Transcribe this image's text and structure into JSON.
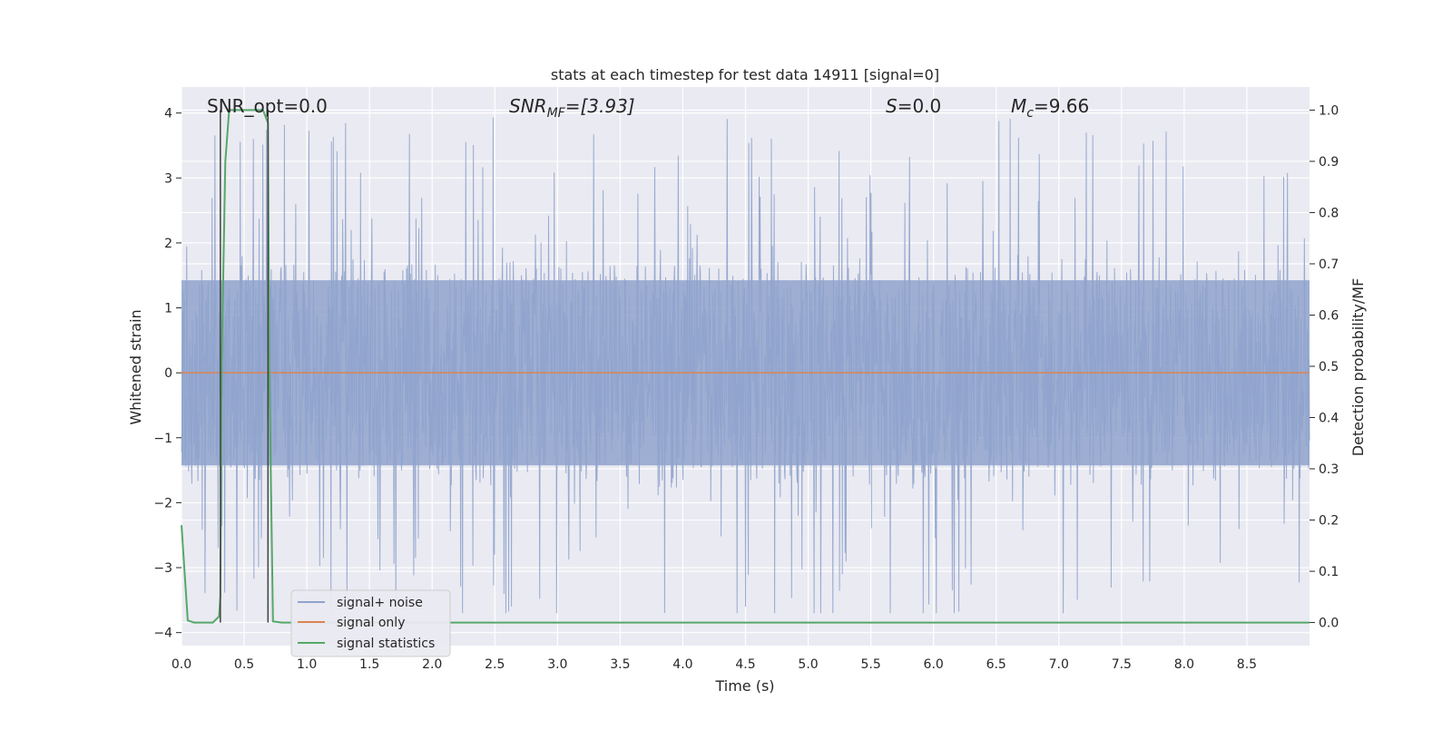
{
  "chart_data": {
    "type": "line",
    "title": "stats at each timestep for test data 14911 [signal=0]",
    "xlabel": "Time (s)",
    "ylabel": "Whitened strain",
    "y2label": "Detection probability/MF",
    "xlim": [
      0.0,
      9.0
    ],
    "ylim": [
      -4.2,
      4.4
    ],
    "y2lim": [
      -0.045,
      1.045
    ],
    "x_ticks": [
      "0.0",
      "0.5",
      "1.0",
      "1.5",
      "2.0",
      "2.5",
      "3.0",
      "3.5",
      "4.0",
      "4.5",
      "5.0",
      "5.5",
      "6.0",
      "6.5",
      "7.0",
      "7.5",
      "8.0",
      "8.5"
    ],
    "y_ticks": [
      "4",
      "3",
      "2",
      "1",
      "0",
      "−1",
      "−2",
      "−3",
      "−4"
    ],
    "y2_ticks": [
      "1.0",
      "0.9",
      "0.8",
      "0.7",
      "0.6",
      "0.5",
      "0.4",
      "0.3",
      "0.2",
      "0.1",
      "0.0"
    ],
    "grid": true,
    "legend_position": "lower-left",
    "annotations": {
      "snr_opt": "SNR_opt=0.0",
      "snr_mf_main": "SNR",
      "snr_mf_sub": "MF",
      "snr_mf_value": "=[3.93]",
      "s_main": "S",
      "s_value": "=0.0",
      "mc_main": "M",
      "mc_sub": "c",
      "mc_value": "=9.66"
    },
    "vertical_lines_x": [
      0.31,
      0.69
    ],
    "series": [
      {
        "name": "signal+ noise",
        "color": "#8fa3cc",
        "description_values": "whitened strain noise samples, amplitude mostly within ±1.5, peaks near ±3.9",
        "noise_envelope": {
          "core": 1.5,
          "peak_max": 3.95,
          "peak_min": -3.7
        }
      },
      {
        "name": "signal only",
        "color": "#dd8452",
        "x": [
          0.0,
          9.0
        ],
        "y": [
          0.0,
          0.0
        ]
      },
      {
        "name": "signal statistics",
        "color": "#55a868",
        "axis": "right",
        "x": [
          0.0,
          0.05,
          0.1,
          0.15,
          0.2,
          0.25,
          0.3,
          0.31,
          0.32,
          0.35,
          0.38,
          0.42,
          0.5,
          0.6,
          0.65,
          0.69,
          0.7,
          0.73,
          0.8,
          0.9,
          1.0,
          2.0,
          4.0,
          6.0,
          8.0,
          9.0
        ],
        "y": [
          0.19,
          0.004,
          0.0,
          0.0,
          0.0,
          0.0,
          0.012,
          0.05,
          0.5,
          0.9,
          1.0,
          1.0,
          1.0,
          1.0,
          1.0,
          0.975,
          0.5,
          0.002,
          0.0,
          0.0,
          0.0,
          0.0,
          0.0,
          0.0,
          0.0,
          0.0
        ]
      }
    ]
  }
}
